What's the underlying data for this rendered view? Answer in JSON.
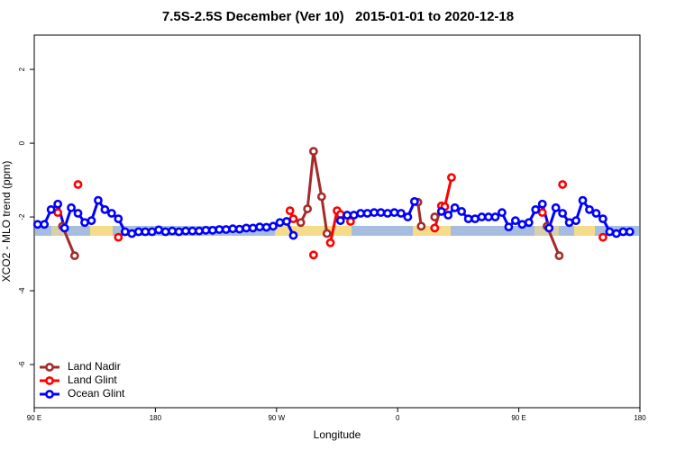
{
  "chart_data": {
    "type": "line",
    "title": "7.5S-2.5S December (Ver 10)   2015-01-01 to 2020-12-18",
    "x_label": "Longitude",
    "y_label": "XCO2 - MLO trend (ppm)",
    "xlim": [
      90,
      540
    ],
    "ylim": [
      -7.17,
      2.93
    ],
    "xticks": [
      {
        "value": 90,
        "label": "90 E"
      },
      180,
      {
        "value": 270,
        "label": "90 W"
      },
      {
        "value": 360,
        "label": "0"
      },
      {
        "value": 450,
        "label": "90 E"
      },
      {
        "value": 540,
        "label": "180"
      }
    ],
    "yticks": [
      -6,
      -4,
      -2,
      0,
      2
    ],
    "legend": "bottom-left",
    "series": [
      {
        "name": "Land Nadir",
        "color": "#a52a2a",
        "x": [
          111,
          120,
          null,
          288,
          293,
          297.5,
          303.5,
          307.5,
          null,
          375,
          377.5,
          null,
          387.5,
          null,
          471,
          480
        ],
        "values": [
          -2.25,
          -3.05,
          null,
          -2.15,
          -1.78,
          -0.22,
          -1.45,
          -2.45,
          null,
          -1.6,
          -2.25,
          null,
          -2.0,
          null,
          -2.25,
          -3.05
        ]
      },
      {
        "name": "Land Glint",
        "color": "#ff0000",
        "x": [
          107.5,
          null,
          122.5,
          null,
          152.5,
          null,
          280,
          282.5,
          null,
          297.5,
          null,
          310,
          315,
          317.5,
          null,
          325,
          null,
          387.5,
          392.5,
          395,
          400,
          null,
          467.5,
          null,
          482.5,
          null,
          512.5
        ],
        "values": [
          -1.88,
          null,
          -1.12,
          null,
          -2.55,
          null,
          -1.83,
          -2.05,
          null,
          -3.03,
          null,
          -2.7,
          -1.83,
          -1.93,
          null,
          -2.12,
          null,
          -2.3,
          -1.7,
          -1.72,
          -0.93,
          null,
          -1.88,
          null,
          -1.12,
          null,
          -2.55
        ]
      },
      {
        "name": "Ocean Glint",
        "color": "#0000ff",
        "x": [
          92.5,
          97.5,
          102.5,
          107.5,
          112.5,
          117.5,
          122.5,
          127.5,
          132.5,
          137.5,
          142.5,
          147.5,
          152.5,
          157.5,
          162.5,
          167.5,
          172.5,
          177.5,
          182.5,
          187.5,
          192.5,
          197.5,
          202.5,
          207.5,
          212.5,
          217.5,
          222.5,
          227.5,
          232.5,
          237.5,
          242.5,
          247.5,
          252.5,
          257.5,
          262.5,
          267.5,
          272.5,
          277.5,
          282.5,
          null,
          317.5,
          322.5,
          327.5,
          332.5,
          337.5,
          342.5,
          347.5,
          352.5,
          357.5,
          362.5,
          367.5,
          372.5,
          null,
          392.5,
          397.5,
          402.5,
          407.5,
          412.5,
          417.5,
          422.5,
          427.5,
          432.5,
          437.5,
          442.5,
          447.5,
          452.5,
          457.5,
          462.5,
          467.5,
          472.5,
          477.5,
          482.5,
          487.5,
          492.5,
          497.5,
          502.5,
          507.5,
          512.5,
          517.5,
          522.5,
          527.5,
          532.5
        ],
        "values": [
          -2.2,
          -2.2,
          -1.8,
          -1.65,
          -2.3,
          -1.75,
          -1.9,
          -2.15,
          -2.1,
          -1.55,
          -1.8,
          -1.9,
          -2.05,
          -2.4,
          -2.45,
          -2.4,
          -2.4,
          -2.4,
          -2.35,
          -2.4,
          -2.38,
          -2.4,
          -2.38,
          -2.38,
          -2.38,
          -2.36,
          -2.36,
          -2.34,
          -2.34,
          -2.32,
          -2.33,
          -2.3,
          -2.3,
          -2.27,
          -2.28,
          -2.25,
          -2.15,
          -2.12,
          -2.5,
          null,
          -2.1,
          -1.95,
          -1.95,
          -1.9,
          -1.9,
          -1.88,
          -1.88,
          -1.9,
          -1.88,
          -1.9,
          -2.0,
          -1.58,
          null,
          -1.85,
          -1.95,
          -1.75,
          -1.85,
          -2.05,
          -2.05,
          -2.0,
          -2.0,
          -2.0,
          -1.88,
          -2.27,
          -2.1,
          -2.2,
          -2.15,
          -1.8,
          -1.65,
          -2.3,
          -1.75,
          -1.9,
          -2.15,
          -2.1,
          -1.55,
          -1.8,
          -1.9,
          -2.05,
          -2.4,
          -2.45,
          -2.4,
          -2.4
        ]
      }
    ]
  }
}
